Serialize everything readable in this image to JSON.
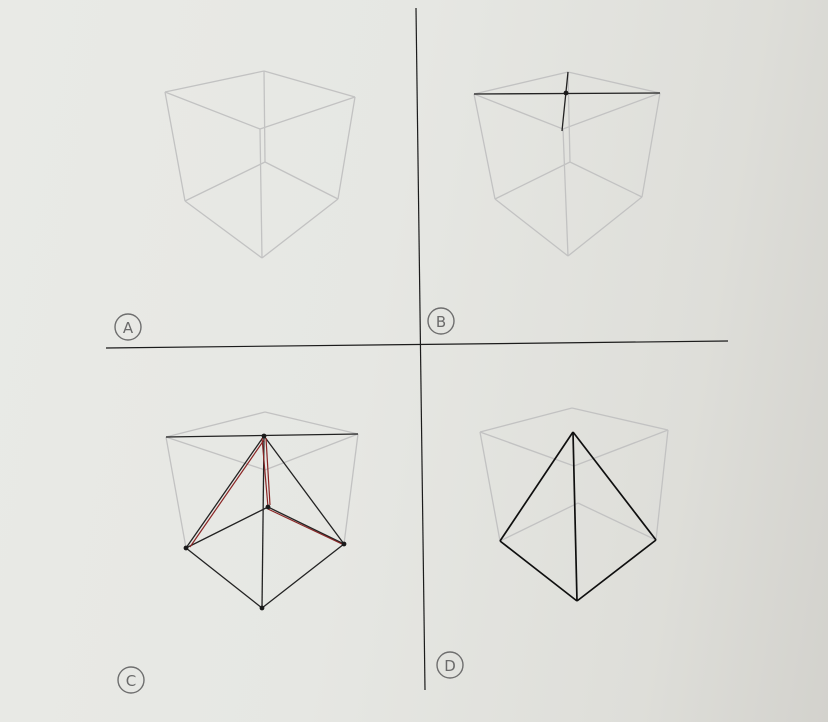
{
  "panels": [
    {
      "id": "A",
      "label": "A"
    },
    {
      "id": "B",
      "label": "B"
    },
    {
      "id": "C",
      "label": "C"
    },
    {
      "id": "D",
      "label": "D"
    }
  ],
  "colors": {
    "background": "#e6e7e3",
    "cube_edges": "#c2c2c2",
    "construction_lines": "#222222",
    "red_lines": "#8a2424",
    "pyramid_edges": "#0f0f0f"
  }
}
